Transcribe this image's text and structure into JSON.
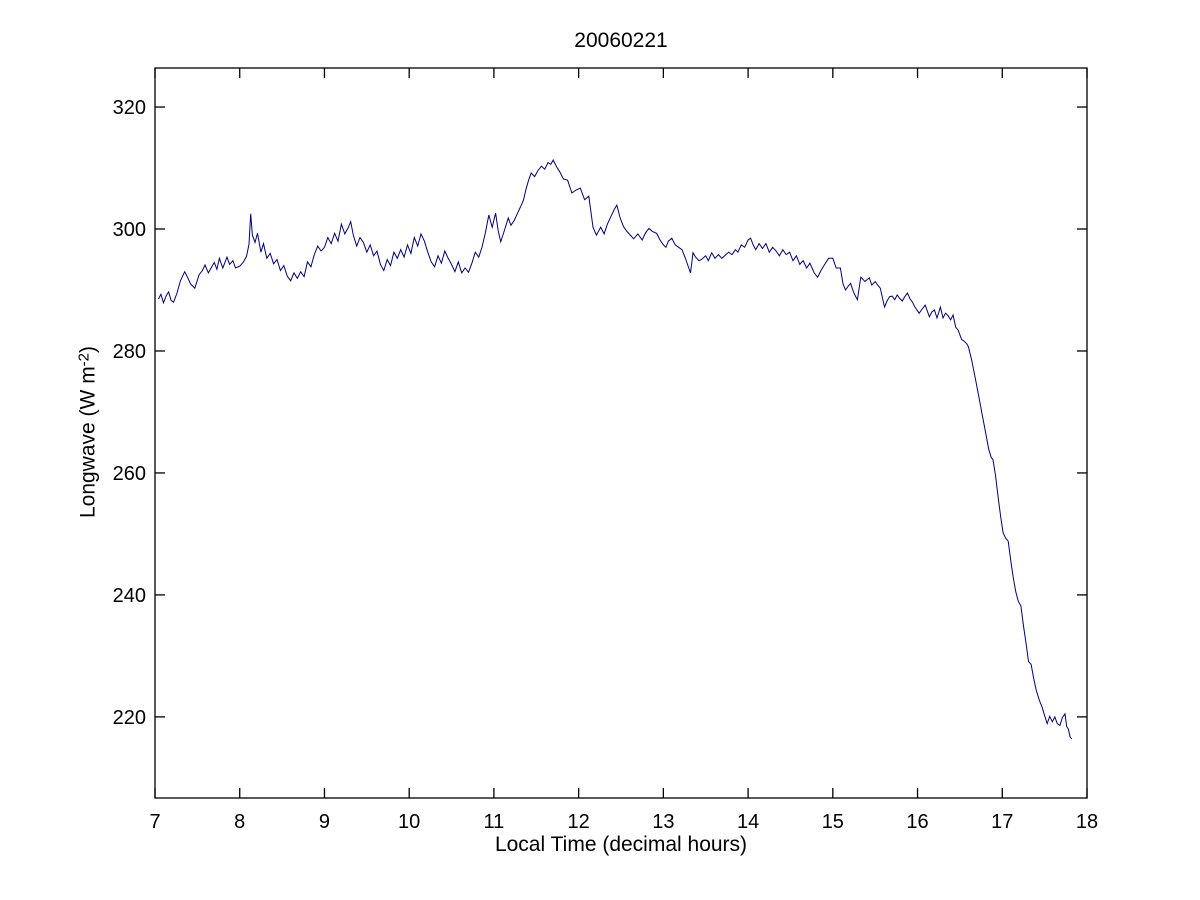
{
  "chart_data": {
    "type": "line",
    "title": "20060221",
    "xlabel": "Local Time (decimal hours)",
    "ylabel_prefix": "Longwave (W m",
    "ylabel_sup": "-2",
    "ylabel_suffix": ")",
    "xlim": [
      7,
      18
    ],
    "ylim": [
      206.7,
      326.4
    ],
    "x_ticks": [
      7,
      8,
      9,
      10,
      11,
      12,
      13,
      14,
      15,
      16,
      17,
      18
    ],
    "y_ticks": [
      220,
      240,
      260,
      280,
      300,
      320
    ],
    "grid": false,
    "legend": "none",
    "line_color": "#000080",
    "axis_color": "#000000",
    "series": [
      {
        "name": "longwave",
        "points": [
          [
            7.04,
            288.5
          ],
          [
            7.07,
            289.3
          ],
          [
            7.1,
            287.9
          ],
          [
            7.13,
            289.0
          ],
          [
            7.16,
            289.7
          ],
          [
            7.19,
            288.3
          ],
          [
            7.22,
            288.0
          ],
          [
            7.26,
            289.5
          ],
          [
            7.3,
            291.5
          ],
          [
            7.35,
            293.0
          ],
          [
            7.38,
            292.2
          ],
          [
            7.42,
            291.0
          ],
          [
            7.47,
            290.3
          ],
          [
            7.52,
            292.5
          ],
          [
            7.56,
            293.2
          ],
          [
            7.59,
            294.1
          ],
          [
            7.63,
            292.8
          ],
          [
            7.67,
            293.8
          ],
          [
            7.7,
            294.5
          ],
          [
            7.73,
            293.4
          ],
          [
            7.76,
            295.2
          ],
          [
            7.8,
            293.6
          ],
          [
            7.85,
            295.4
          ],
          [
            7.88,
            294.2
          ],
          [
            7.92,
            294.8
          ],
          [
            7.95,
            293.6
          ],
          [
            8.0,
            293.9
          ],
          [
            8.04,
            294.5
          ],
          [
            8.08,
            295.5
          ],
          [
            8.11,
            297.5
          ],
          [
            8.13,
            302.5
          ],
          [
            8.15,
            299.0
          ],
          [
            8.18,
            297.8
          ],
          [
            8.21,
            299.3
          ],
          [
            8.25,
            296.2
          ],
          [
            8.28,
            297.6
          ],
          [
            8.32,
            295.2
          ],
          [
            8.36,
            296.0
          ],
          [
            8.4,
            294.3
          ],
          [
            8.44,
            295.0
          ],
          [
            8.48,
            293.2
          ],
          [
            8.52,
            294.0
          ],
          [
            8.56,
            292.3
          ],
          [
            8.6,
            291.5
          ],
          [
            8.64,
            292.8
          ],
          [
            8.68,
            291.9
          ],
          [
            8.72,
            293.0
          ],
          [
            8.76,
            292.2
          ],
          [
            8.8,
            294.6
          ],
          [
            8.84,
            293.8
          ],
          [
            8.88,
            295.8
          ],
          [
            8.92,
            297.2
          ],
          [
            8.96,
            296.4
          ],
          [
            9.0,
            297.0
          ],
          [
            9.04,
            298.6
          ],
          [
            9.08,
            297.6
          ],
          [
            9.12,
            299.3
          ],
          [
            9.16,
            298.0
          ],
          [
            9.2,
            300.8
          ],
          [
            9.24,
            299.2
          ],
          [
            9.28,
            300.2
          ],
          [
            9.31,
            301.2
          ],
          [
            9.34,
            299.0
          ],
          [
            9.38,
            297.2
          ],
          [
            9.42,
            298.6
          ],
          [
            9.46,
            297.8
          ],
          [
            9.5,
            296.2
          ],
          [
            9.54,
            297.4
          ],
          [
            9.58,
            295.6
          ],
          [
            9.62,
            296.4
          ],
          [
            9.66,
            294.2
          ],
          [
            9.7,
            293.2
          ],
          [
            9.74,
            295.0
          ],
          [
            9.78,
            294.0
          ],
          [
            9.82,
            296.2
          ],
          [
            9.86,
            295.2
          ],
          [
            9.9,
            296.6
          ],
          [
            9.94,
            295.4
          ],
          [
            9.98,
            297.4
          ],
          [
            10.02,
            296.0
          ],
          [
            10.06,
            298.6
          ],
          [
            10.1,
            297.2
          ],
          [
            10.14,
            299.2
          ],
          [
            10.18,
            298.0
          ],
          [
            10.22,
            296.2
          ],
          [
            10.26,
            294.6
          ],
          [
            10.3,
            293.8
          ],
          [
            10.34,
            295.6
          ],
          [
            10.38,
            294.4
          ],
          [
            10.42,
            296.4
          ],
          [
            10.46,
            295.2
          ],
          [
            10.5,
            294.2
          ],
          [
            10.54,
            293.0
          ],
          [
            10.58,
            294.6
          ],
          [
            10.62,
            292.8
          ],
          [
            10.66,
            293.6
          ],
          [
            10.7,
            292.9
          ],
          [
            10.74,
            294.4
          ],
          [
            10.78,
            296.2
          ],
          [
            10.82,
            295.4
          ],
          [
            10.86,
            297.0
          ],
          [
            10.9,
            299.4
          ],
          [
            10.94,
            302.3
          ],
          [
            10.98,
            300.3
          ],
          [
            11.02,
            302.6
          ],
          [
            11.05,
            299.8
          ],
          [
            11.08,
            297.9
          ],
          [
            11.12,
            299.6
          ],
          [
            11.17,
            301.8
          ],
          [
            11.2,
            300.6
          ],
          [
            11.24,
            301.4
          ],
          [
            11.28,
            302.6
          ],
          [
            11.32,
            303.8
          ],
          [
            11.35,
            304.8
          ],
          [
            11.38,
            306.6
          ],
          [
            11.41,
            308.0
          ],
          [
            11.44,
            309.2
          ],
          [
            11.48,
            308.6
          ],
          [
            11.52,
            309.6
          ],
          [
            11.56,
            310.3
          ],
          [
            11.6,
            309.8
          ],
          [
            11.64,
            310.9
          ],
          [
            11.67,
            310.6
          ],
          [
            11.7,
            311.3
          ],
          [
            11.74,
            310.2
          ],
          [
            11.78,
            309.3
          ],
          [
            11.82,
            308.2
          ],
          [
            11.87,
            308.0
          ],
          [
            11.92,
            305.9
          ],
          [
            11.97,
            306.4
          ],
          [
            12.02,
            306.7
          ],
          [
            12.07,
            304.8
          ],
          [
            12.12,
            305.4
          ],
          [
            12.17,
            300.3
          ],
          [
            12.21,
            299.0
          ],
          [
            12.26,
            300.3
          ],
          [
            12.3,
            299.2
          ],
          [
            12.34,
            300.8
          ],
          [
            12.38,
            302.0
          ],
          [
            12.42,
            303.2
          ],
          [
            12.45,
            303.9
          ],
          [
            12.49,
            301.8
          ],
          [
            12.53,
            300.4
          ],
          [
            12.57,
            299.6
          ],
          [
            12.61,
            299.0
          ],
          [
            12.65,
            298.4
          ],
          [
            12.7,
            299.2
          ],
          [
            12.75,
            298.2
          ],
          [
            12.79,
            299.4
          ],
          [
            12.83,
            300.1
          ],
          [
            12.87,
            299.6
          ],
          [
            12.92,
            299.3
          ],
          [
            12.96,
            298.2
          ],
          [
            13.0,
            297.4
          ],
          [
            13.03,
            297.0
          ],
          [
            13.06,
            298.0
          ],
          [
            13.1,
            298.5
          ],
          [
            13.14,
            297.4
          ],
          [
            13.18,
            297.0
          ],
          [
            13.22,
            296.6
          ],
          [
            13.26,
            295.2
          ],
          [
            13.3,
            293.6
          ],
          [
            13.32,
            292.8
          ],
          [
            13.35,
            296.1
          ],
          [
            13.38,
            295.4
          ],
          [
            13.42,
            294.8
          ],
          [
            13.45,
            295.0
          ],
          [
            13.5,
            295.6
          ],
          [
            13.53,
            294.8
          ],
          [
            13.57,
            296.1
          ],
          [
            13.61,
            295.2
          ],
          [
            13.65,
            295.8
          ],
          [
            13.69,
            295.2
          ],
          [
            13.73,
            295.7
          ],
          [
            13.77,
            296.2
          ],
          [
            13.81,
            295.8
          ],
          [
            13.85,
            296.6
          ],
          [
            13.88,
            296.2
          ],
          [
            13.92,
            297.4
          ],
          [
            13.96,
            297.0
          ],
          [
            14.0,
            298.2
          ],
          [
            14.03,
            298.5
          ],
          [
            14.06,
            297.4
          ],
          [
            14.09,
            296.6
          ],
          [
            14.13,
            297.6
          ],
          [
            14.17,
            296.8
          ],
          [
            14.21,
            297.6
          ],
          [
            14.25,
            296.2
          ],
          [
            14.29,
            297.0
          ],
          [
            14.33,
            296.4
          ],
          [
            14.37,
            295.6
          ],
          [
            14.41,
            296.6
          ],
          [
            14.45,
            295.8
          ],
          [
            14.49,
            296.2
          ],
          [
            14.53,
            294.8
          ],
          [
            14.57,
            295.6
          ],
          [
            14.61,
            294.2
          ],
          [
            14.65,
            294.8
          ],
          [
            14.69,
            293.6
          ],
          [
            14.73,
            294.4
          ],
          [
            14.78,
            292.8
          ],
          [
            14.82,
            292.1
          ],
          [
            14.86,
            293.2
          ],
          [
            14.9,
            294.1
          ],
          [
            14.95,
            295.2
          ],
          [
            15.0,
            295.2
          ],
          [
            15.04,
            293.6
          ],
          [
            15.09,
            293.6
          ],
          [
            15.12,
            291.0
          ],
          [
            15.15,
            290.0
          ],
          [
            15.18,
            290.6
          ],
          [
            15.21,
            291.1
          ],
          [
            15.24,
            289.8
          ],
          [
            15.26,
            289.2
          ],
          [
            15.29,
            288.4
          ],
          [
            15.33,
            292.1
          ],
          [
            15.38,
            291.4
          ],
          [
            15.43,
            292.0
          ],
          [
            15.46,
            290.8
          ],
          [
            15.5,
            291.4
          ],
          [
            15.53,
            290.8
          ],
          [
            15.56,
            290.3
          ],
          [
            15.61,
            287.2
          ],
          [
            15.64,
            288.2
          ],
          [
            15.67,
            288.9
          ],
          [
            15.7,
            289.0
          ],
          [
            15.73,
            288.4
          ],
          [
            15.76,
            289.2
          ],
          [
            15.79,
            288.6
          ],
          [
            15.82,
            288.2
          ],
          [
            15.85,
            288.9
          ],
          [
            15.88,
            289.5
          ],
          [
            15.91,
            288.6
          ],
          [
            15.94,
            288.0
          ],
          [
            15.97,
            287.2
          ],
          [
            16.02,
            286.2
          ],
          [
            16.05,
            286.8
          ],
          [
            16.09,
            287.5
          ],
          [
            16.14,
            285.6
          ],
          [
            16.17,
            286.4
          ],
          [
            16.2,
            286.7
          ],
          [
            16.23,
            285.4
          ],
          [
            16.27,
            287.2
          ],
          [
            16.3,
            285.4
          ],
          [
            16.33,
            286.2
          ],
          [
            16.36,
            285.8
          ],
          [
            16.39,
            285.1
          ],
          [
            16.42,
            285.9
          ],
          [
            16.45,
            283.9
          ],
          [
            16.48,
            283.4
          ],
          [
            16.52,
            281.9
          ],
          [
            16.55,
            281.6
          ],
          [
            16.58,
            281.2
          ],
          [
            16.6,
            280.7
          ],
          [
            16.64,
            278.4
          ],
          [
            16.68,
            275.6
          ],
          [
            16.72,
            272.8
          ],
          [
            16.76,
            269.8
          ],
          [
            16.8,
            266.9
          ],
          [
            16.84,
            263.9
          ],
          [
            16.87,
            262.5
          ],
          [
            16.89,
            262.2
          ],
          [
            16.92,
            259.6
          ],
          [
            16.95,
            256.2
          ],
          [
            16.98,
            252.9
          ],
          [
            17.01,
            250.2
          ],
          [
            17.04,
            249.3
          ],
          [
            17.07,
            248.8
          ],
          [
            17.1,
            245.7
          ],
          [
            17.13,
            242.8
          ],
          [
            17.16,
            240.5
          ],
          [
            17.19,
            238.9
          ],
          [
            17.22,
            238.2
          ],
          [
            17.25,
            234.9
          ],
          [
            17.28,
            232.1
          ],
          [
            17.31,
            229.1
          ],
          [
            17.34,
            228.6
          ],
          [
            17.37,
            226.4
          ],
          [
            17.4,
            224.4
          ],
          [
            17.44,
            222.6
          ],
          [
            17.47,
            221.6
          ],
          [
            17.5,
            220.2
          ],
          [
            17.53,
            218.9
          ],
          [
            17.56,
            220.1
          ],
          [
            17.59,
            219.2
          ],
          [
            17.62,
            220.0
          ],
          [
            17.65,
            218.9
          ],
          [
            17.68,
            218.6
          ],
          [
            17.71,
            219.9
          ],
          [
            17.74,
            220.5
          ],
          [
            17.76,
            218.4
          ],
          [
            17.78,
            218.0
          ],
          [
            17.8,
            216.7
          ],
          [
            17.82,
            216.4
          ]
        ]
      }
    ]
  }
}
